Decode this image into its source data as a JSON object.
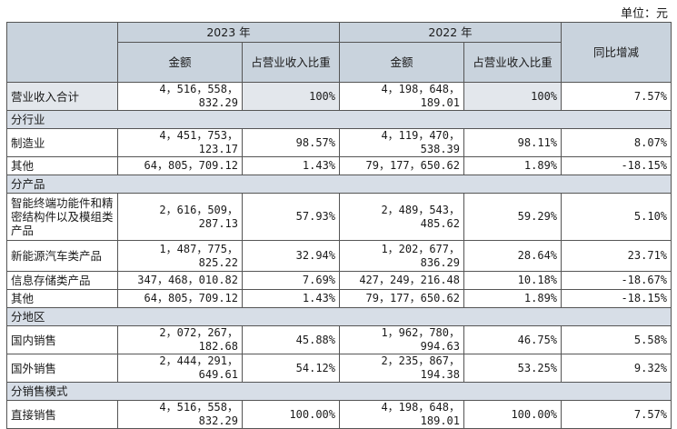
{
  "unit_label": "单位：元",
  "header": {
    "year_2023": "2023 年",
    "year_2022": "2022 年",
    "amount": "金额",
    "ratio": "占营业收入比重",
    "yoy": "同比增减"
  },
  "total": {
    "label": "营业收入合计",
    "amt_2023": "4，516，558，832.29",
    "pct_2023": "100%",
    "amt_2022": "4，198，648，189.01",
    "pct_2022": "100%",
    "yoy": "7.57%"
  },
  "sections": {
    "industry": "分行业",
    "product": "分产品",
    "region": "分地区",
    "sales_mode": "分销售模式"
  },
  "rows": {
    "manufacturing": {
      "label": "制造业",
      "amt_2023": "4，451，753，123.17",
      "pct_2023": "98.57%",
      "amt_2022": "4，119，470，538.39",
      "pct_2022": "98.11%",
      "yoy": "8.07%"
    },
    "other_ind": {
      "label": "其他",
      "amt_2023": "64，805，709.12",
      "pct_2023": "1.43%",
      "amt_2022": "79，177，650.62",
      "pct_2022": "1.89%",
      "yoy": "-18.15%"
    },
    "smart": {
      "label": "智能终端功能件和精密结构件以及模组类产品",
      "amt_2023": "2，616，509，287.13",
      "pct_2023": "57.93%",
      "amt_2022": "2，489，543，485.62",
      "pct_2022": "59.29%",
      "yoy": "5.10%"
    },
    "nev": {
      "label": "新能源汽车类产品",
      "amt_2023": "1，487，775，825.22",
      "pct_2023": "32.94%",
      "amt_2022": "1，202，677，836.29",
      "pct_2022": "28.64%",
      "yoy": "23.71%"
    },
    "storage": {
      "label": "信息存储类产品",
      "amt_2023": "347，468，010.82",
      "pct_2023": "7.69%",
      "amt_2022": "427，249，216.48",
      "pct_2022": "10.18%",
      "yoy": "-18.67%"
    },
    "other_prod": {
      "label": "其他",
      "amt_2023": "64，805，709.12",
      "pct_2023": "1.43%",
      "amt_2022": "79，177，650.62",
      "pct_2022": "1.89%",
      "yoy": "-18.15%"
    },
    "domestic": {
      "label": "国内销售",
      "amt_2023": "2，072，267，182.68",
      "pct_2023": "45.88%",
      "amt_2022": "1，962，780，994.63",
      "pct_2022": "46.75%",
      "yoy": "5.58%"
    },
    "foreign": {
      "label": "国外销售",
      "amt_2023": "2，444，291，649.61",
      "pct_2023": "54.12%",
      "amt_2022": "2，235，867，194.38",
      "pct_2022": "53.25%",
      "yoy": "9.32%"
    },
    "direct": {
      "label": "直接销售",
      "amt_2023": "4，516，558，832.29",
      "pct_2023": "100.00%",
      "amt_2022": "4，198，648，189.01",
      "pct_2022": "100.00%",
      "yoy": "7.57%"
    }
  }
}
